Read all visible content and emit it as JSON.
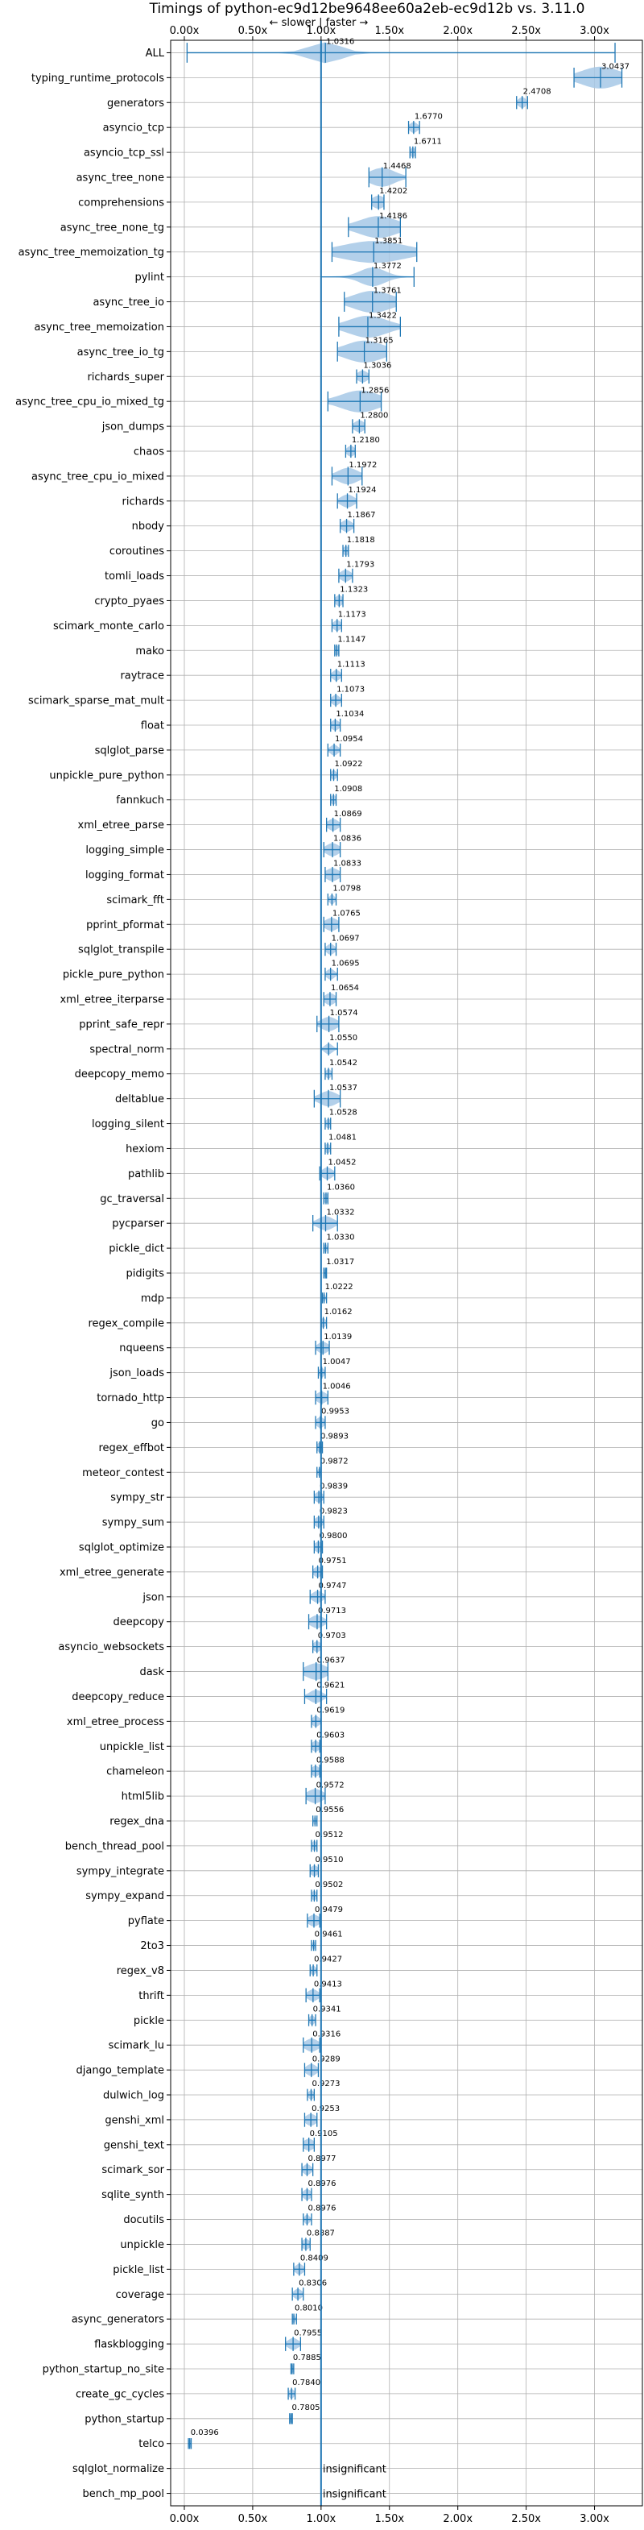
{
  "chart_data": {
    "type": "violin",
    "title": "Timings of python-ec9d12be9648ee60a2eb-ec9d12b vs. 3.11.0",
    "direction_label": "← slower | faster →",
    "xlim": [
      -0.1,
      3.35
    ],
    "x_ticks": [
      0.0,
      0.5,
      1.0,
      1.5,
      2.0,
      2.5,
      3.0
    ],
    "x_tick_labels": [
      "0.00x",
      "0.50x",
      "1.00x",
      "1.50x",
      "2.00x",
      "2.50x",
      "3.00x"
    ],
    "reference_line": 1.0,
    "insignificant_label": "insignificant",
    "accent_color": "#1f77b4",
    "fill_color": "#a6c8e6",
    "marker_color": "#d62728",
    "benchmarks": [
      {
        "name": "ALL",
        "value": 1.0316,
        "label": "1.0316",
        "range": [
          0.02,
          3.15
        ],
        "spread": 0.12
      },
      {
        "name": "typing_runtime_protocols",
        "value": 3.0437,
        "label": "3.0437",
        "range": [
          2.85,
          3.2
        ],
        "spread": 0.15
      },
      {
        "name": "generators",
        "value": 2.4708,
        "label": "2.4708",
        "range": [
          2.43,
          2.51
        ],
        "spread": 0.03
      },
      {
        "name": "asyncio_tcp",
        "value": 1.677,
        "label": "1.6770",
        "range": [
          1.64,
          1.72
        ],
        "spread": 0.03
      },
      {
        "name": "asyncio_tcp_ssl",
        "value": 1.6711,
        "label": "1.6711",
        "range": [
          1.65,
          1.69
        ],
        "spread": 0.02
      },
      {
        "name": "async_tree_none",
        "value": 1.4468,
        "label": "1.4468",
        "range": [
          1.35,
          1.62
        ],
        "spread": 0.1
      },
      {
        "name": "comprehensions",
        "value": 1.4202,
        "label": "1.4202",
        "range": [
          1.37,
          1.46
        ],
        "spread": 0.05
      },
      {
        "name": "async_tree_none_tg",
        "value": 1.4186,
        "label": "1.4186",
        "range": [
          1.2,
          1.58
        ],
        "spread": 0.15
      },
      {
        "name": "async_tree_memoization_tg",
        "value": 1.3851,
        "label": "1.3851",
        "range": [
          1.08,
          1.7
        ],
        "spread": 0.25
      },
      {
        "name": "pylint",
        "value": 1.3772,
        "label": "1.3772",
        "range": [
          1.0,
          1.68
        ],
        "spread": 0.1
      },
      {
        "name": "async_tree_io",
        "value": 1.3761,
        "label": "1.3761",
        "range": [
          1.17,
          1.55
        ],
        "spread": 0.15
      },
      {
        "name": "async_tree_memoization",
        "value": 1.3422,
        "label": "1.3422",
        "range": [
          1.13,
          1.58
        ],
        "spread": 0.15
      },
      {
        "name": "async_tree_io_tg",
        "value": 1.3165,
        "label": "1.3165",
        "range": [
          1.12,
          1.48
        ],
        "spread": 0.15
      },
      {
        "name": "richards_super",
        "value": 1.3036,
        "label": "1.3036",
        "range": [
          1.26,
          1.35
        ],
        "spread": 0.04
      },
      {
        "name": "async_tree_cpu_io_mixed_tg",
        "value": 1.2856,
        "label": "1.2856",
        "range": [
          1.05,
          1.44
        ],
        "spread": 0.15
      },
      {
        "name": "json_dumps",
        "value": 1.28,
        "label": "1.2800",
        "range": [
          1.23,
          1.32
        ],
        "spread": 0.04
      },
      {
        "name": "chaos",
        "value": 1.218,
        "label": "1.2180",
        "range": [
          1.18,
          1.25
        ],
        "spread": 0.03
      },
      {
        "name": "async_tree_cpu_io_mixed",
        "value": 1.1972,
        "label": "1.1972",
        "range": [
          1.08,
          1.3
        ],
        "spread": 0.08
      },
      {
        "name": "richards",
        "value": 1.1924,
        "label": "1.1924",
        "range": [
          1.12,
          1.26
        ],
        "spread": 0.05
      },
      {
        "name": "nbody",
        "value": 1.1867,
        "label": "1.1867",
        "range": [
          1.14,
          1.24
        ],
        "spread": 0.04
      },
      {
        "name": "coroutines",
        "value": 1.1818,
        "label": "1.1818",
        "range": [
          1.16,
          1.2
        ],
        "spread": 0.02
      },
      {
        "name": "tomli_loads",
        "value": 1.1793,
        "label": "1.1793",
        "range": [
          1.13,
          1.23
        ],
        "spread": 0.04
      },
      {
        "name": "crypto_pyaes",
        "value": 1.1323,
        "label": "1.1323",
        "range": [
          1.1,
          1.16
        ],
        "spread": 0.03
      },
      {
        "name": "scimark_monte_carlo",
        "value": 1.1173,
        "label": "1.1173",
        "range": [
          1.08,
          1.15
        ],
        "spread": 0.03
      },
      {
        "name": "mako",
        "value": 1.1147,
        "label": "1.1147",
        "range": [
          1.1,
          1.13
        ],
        "spread": 0.02
      },
      {
        "name": "raytrace",
        "value": 1.1113,
        "label": "1.1113",
        "range": [
          1.07,
          1.15
        ],
        "spread": 0.03
      },
      {
        "name": "scimark_sparse_mat_mult",
        "value": 1.1073,
        "label": "1.1073",
        "range": [
          1.07,
          1.15
        ],
        "spread": 0.03
      },
      {
        "name": "float",
        "value": 1.1034,
        "label": "1.1034",
        "range": [
          1.07,
          1.14
        ],
        "spread": 0.03
      },
      {
        "name": "sqlglot_parse",
        "value": 1.0954,
        "label": "1.0954",
        "range": [
          1.05,
          1.14
        ],
        "spread": 0.03
      },
      {
        "name": "unpickle_pure_python",
        "value": 1.0922,
        "label": "1.0922",
        "range": [
          1.07,
          1.12
        ],
        "spread": 0.02
      },
      {
        "name": "fannkuch",
        "value": 1.0908,
        "label": "1.0908",
        "range": [
          1.07,
          1.11
        ],
        "spread": 0.02
      },
      {
        "name": "xml_etree_parse",
        "value": 1.0869,
        "label": "1.0869",
        "range": [
          1.04,
          1.14
        ],
        "spread": 0.04
      },
      {
        "name": "logging_simple",
        "value": 1.0836,
        "label": "1.0836",
        "range": [
          1.02,
          1.14
        ],
        "spread": 0.05
      },
      {
        "name": "logging_format",
        "value": 1.0833,
        "label": "1.0833",
        "range": [
          1.03,
          1.14
        ],
        "spread": 0.05
      },
      {
        "name": "scimark_fft",
        "value": 1.0798,
        "label": "1.0798",
        "range": [
          1.05,
          1.11
        ],
        "spread": 0.02
      },
      {
        "name": "pprint_pformat",
        "value": 1.0765,
        "label": "1.0765",
        "range": [
          1.02,
          1.13
        ],
        "spread": 0.05
      },
      {
        "name": "sqlglot_transpile",
        "value": 1.0697,
        "label": "1.0697",
        "range": [
          1.03,
          1.11
        ],
        "spread": 0.03
      },
      {
        "name": "pickle_pure_python",
        "value": 1.0695,
        "label": "1.0695",
        "range": [
          1.03,
          1.12
        ],
        "spread": 0.03
      },
      {
        "name": "xml_etree_iterparse",
        "value": 1.0654,
        "label": "1.0654",
        "range": [
          1.02,
          1.11
        ],
        "spread": 0.04
      },
      {
        "name": "pprint_safe_repr",
        "value": 1.0574,
        "label": "1.0574",
        "range": [
          0.97,
          1.13
        ],
        "spread": 0.06
      },
      {
        "name": "spectral_norm",
        "value": 1.055,
        "label": "1.0550",
        "range": [
          1.0,
          1.12
        ],
        "spread": 0.03
      },
      {
        "name": "deepcopy_memo",
        "value": 1.0542,
        "label": "1.0542",
        "range": [
          1.03,
          1.08
        ],
        "spread": 0.02
      },
      {
        "name": "deltablue",
        "value": 1.0537,
        "label": "1.0537",
        "range": [
          0.95,
          1.14
        ],
        "spread": 0.07
      },
      {
        "name": "logging_silent",
        "value": 1.0528,
        "label": "1.0528",
        "range": [
          1.03,
          1.07
        ],
        "spread": 0.02
      },
      {
        "name": "hexiom",
        "value": 1.0481,
        "label": "1.0481",
        "range": [
          1.03,
          1.07
        ],
        "spread": 0.02
      },
      {
        "name": "pathlib",
        "value": 1.0452,
        "label": "1.0452",
        "range": [
          0.99,
          1.1
        ],
        "spread": 0.04
      },
      {
        "name": "gc_traversal",
        "value": 1.036,
        "label": "1.0360",
        "range": [
          1.02,
          1.05
        ],
        "spread": 0.02
      },
      {
        "name": "pycparser",
        "value": 1.0332,
        "label": "1.0332",
        "range": [
          0.94,
          1.12
        ],
        "spread": 0.06
      },
      {
        "name": "pickle_dict",
        "value": 1.033,
        "label": "1.0330",
        "range": [
          1.02,
          1.05
        ],
        "spread": 0.01
      },
      {
        "name": "pidigits",
        "value": 1.0317,
        "label": "1.0317",
        "range": [
          1.02,
          1.04
        ],
        "spread": 0.01
      },
      {
        "name": "mdp",
        "value": 1.0222,
        "label": "1.0222",
        "range": [
          1.01,
          1.04
        ],
        "spread": 0.01
      },
      {
        "name": "regex_compile",
        "value": 1.0162,
        "label": "1.0162",
        "range": [
          1.0,
          1.04
        ],
        "spread": 0.02
      },
      {
        "name": "nqueens",
        "value": 1.0139,
        "label": "1.0139",
        "range": [
          0.96,
          1.06
        ],
        "spread": 0.04
      },
      {
        "name": "json_loads",
        "value": 1.0047,
        "label": "1.0047",
        "range": [
          0.98,
          1.03
        ],
        "spread": 0.02
      },
      {
        "name": "tornado_http",
        "value": 1.0046,
        "label": "1.0046",
        "range": [
          0.96,
          1.05
        ],
        "spread": 0.04
      },
      {
        "name": "go",
        "value": 0.9953,
        "label": "0.9953",
        "range": [
          0.96,
          1.03
        ],
        "spread": 0.03
      },
      {
        "name": "regex_effbot",
        "value": 0.9893,
        "label": "0.9893",
        "range": [
          0.97,
          1.01
        ],
        "spread": 0.02
      },
      {
        "name": "meteor_contest",
        "value": 0.9872,
        "label": "0.9872",
        "range": [
          0.97,
          1.0
        ],
        "spread": 0.01
      },
      {
        "name": "sympy_str",
        "value": 0.9839,
        "label": "0.9839",
        "range": [
          0.95,
          1.02
        ],
        "spread": 0.03
      },
      {
        "name": "sympy_sum",
        "value": 0.9823,
        "label": "0.9823",
        "range": [
          0.95,
          1.02
        ],
        "spread": 0.03
      },
      {
        "name": "sqlglot_optimize",
        "value": 0.98,
        "label": "0.9800",
        "range": [
          0.95,
          1.01
        ],
        "spread": 0.03
      },
      {
        "name": "xml_etree_generate",
        "value": 0.9751,
        "label": "0.9751",
        "range": [
          0.94,
          1.01
        ],
        "spread": 0.03
      },
      {
        "name": "json",
        "value": 0.9747,
        "label": "0.9747",
        "range": [
          0.92,
          1.03
        ],
        "spread": 0.04
      },
      {
        "name": "deepcopy",
        "value": 0.9713,
        "label": "0.9713",
        "range": [
          0.91,
          1.04
        ],
        "spread": 0.05
      },
      {
        "name": "asyncio_websockets",
        "value": 0.9703,
        "label": "0.9703",
        "range": [
          0.94,
          1.0
        ],
        "spread": 0.03
      },
      {
        "name": "dask",
        "value": 0.9637,
        "label": "0.9637",
        "range": [
          0.87,
          1.05
        ],
        "spread": 0.08
      },
      {
        "name": "deepcopy_reduce",
        "value": 0.9621,
        "label": "0.9621",
        "range": [
          0.88,
          1.04
        ],
        "spread": 0.05
      },
      {
        "name": "xml_etree_process",
        "value": 0.9619,
        "label": "0.9619",
        "range": [
          0.93,
          1.0
        ],
        "spread": 0.03
      },
      {
        "name": "unpickle_list",
        "value": 0.9603,
        "label": "0.9603",
        "range": [
          0.93,
          0.99
        ],
        "spread": 0.03
      },
      {
        "name": "chameleon",
        "value": 0.9588,
        "label": "0.9588",
        "range": [
          0.93,
          0.99
        ],
        "spread": 0.03
      },
      {
        "name": "html5lib",
        "value": 0.9572,
        "label": "0.9572",
        "range": [
          0.89,
          1.03
        ],
        "spread": 0.06
      },
      {
        "name": "regex_dna",
        "value": 0.9556,
        "label": "0.9556",
        "range": [
          0.94,
          0.97
        ],
        "spread": 0.01
      },
      {
        "name": "bench_thread_pool",
        "value": 0.9512,
        "label": "0.9512",
        "range": [
          0.93,
          0.97
        ],
        "spread": 0.02
      },
      {
        "name": "sympy_integrate",
        "value": 0.951,
        "label": "0.9510",
        "range": [
          0.92,
          0.98
        ],
        "spread": 0.03
      },
      {
        "name": "sympy_expand",
        "value": 0.9502,
        "label": "0.9502",
        "range": [
          0.93,
          0.97
        ],
        "spread": 0.02
      },
      {
        "name": "pyflate",
        "value": 0.9479,
        "label": "0.9479",
        "range": [
          0.9,
          0.99
        ],
        "spread": 0.04
      },
      {
        "name": "2to3",
        "value": 0.9461,
        "label": "0.9461",
        "range": [
          0.93,
          0.96
        ],
        "spread": 0.01
      },
      {
        "name": "regex_v8",
        "value": 0.9427,
        "label": "0.9427",
        "range": [
          0.92,
          0.97
        ],
        "spread": 0.02
      },
      {
        "name": "thrift",
        "value": 0.9413,
        "label": "0.9413",
        "range": [
          0.89,
          0.99
        ],
        "spread": 0.04
      },
      {
        "name": "pickle",
        "value": 0.9341,
        "label": "0.9341",
        "range": [
          0.91,
          0.96
        ],
        "spread": 0.02
      },
      {
        "name": "scimark_lu",
        "value": 0.9316,
        "label": "0.9316",
        "range": [
          0.87,
          0.99
        ],
        "spread": 0.05
      },
      {
        "name": "django_template",
        "value": 0.9289,
        "label": "0.9289",
        "range": [
          0.88,
          0.98
        ],
        "spread": 0.04
      },
      {
        "name": "dulwich_log",
        "value": 0.9273,
        "label": "0.9273",
        "range": [
          0.9,
          0.95
        ],
        "spread": 0.02
      },
      {
        "name": "genshi_xml",
        "value": 0.9253,
        "label": "0.9253",
        "range": [
          0.88,
          0.97
        ],
        "spread": 0.04
      },
      {
        "name": "genshi_text",
        "value": 0.9105,
        "label": "0.9105",
        "range": [
          0.87,
          0.95
        ],
        "spread": 0.04
      },
      {
        "name": "scimark_sor",
        "value": 0.8977,
        "label": "0.8977",
        "range": [
          0.86,
          0.94
        ],
        "spread": 0.03
      },
      {
        "name": "sqlite_synth",
        "value": 0.8976,
        "label": "0.8976",
        "range": [
          0.86,
          0.93
        ],
        "spread": 0.03
      },
      {
        "name": "docutils",
        "value": 0.8976,
        "label": "0.8976",
        "range": [
          0.87,
          0.93
        ],
        "spread": 0.02
      },
      {
        "name": "unpickle",
        "value": 0.8887,
        "label": "0.8887",
        "range": [
          0.86,
          0.92
        ],
        "spread": 0.03
      },
      {
        "name": "pickle_list",
        "value": 0.8409,
        "label": "0.8409",
        "range": [
          0.8,
          0.88
        ],
        "spread": 0.03
      },
      {
        "name": "coverage",
        "value": 0.8306,
        "label": "0.8306",
        "range": [
          0.79,
          0.87
        ],
        "spread": 0.03
      },
      {
        "name": "async_generators",
        "value": 0.801,
        "label": "0.8010",
        "range": [
          0.79,
          0.82
        ],
        "spread": 0.01
      },
      {
        "name": "flaskblogging",
        "value": 0.7955,
        "label": "0.7955",
        "range": [
          0.74,
          0.85
        ],
        "spread": 0.04
      },
      {
        "name": "python_startup_no_site",
        "value": 0.7885,
        "label": "0.7885",
        "range": [
          0.78,
          0.8
        ],
        "spread": 0.01
      },
      {
        "name": "create_gc_cycles",
        "value": 0.784,
        "label": "0.7840",
        "range": [
          0.76,
          0.81
        ],
        "spread": 0.02
      },
      {
        "name": "python_startup",
        "value": 0.7805,
        "label": "0.7805",
        "range": [
          0.77,
          0.79
        ],
        "spread": 0.01
      },
      {
        "name": "telco",
        "value": 0.0396,
        "label": "0.0396",
        "range": [
          0.03,
          0.05
        ],
        "spread": 0.01
      },
      {
        "name": "sqlglot_normalize",
        "value": null,
        "label": "insignificant",
        "range": null,
        "spread": 0
      },
      {
        "name": "bench_mp_pool",
        "value": null,
        "label": "insignificant",
        "range": null,
        "spread": 0
      }
    ]
  }
}
